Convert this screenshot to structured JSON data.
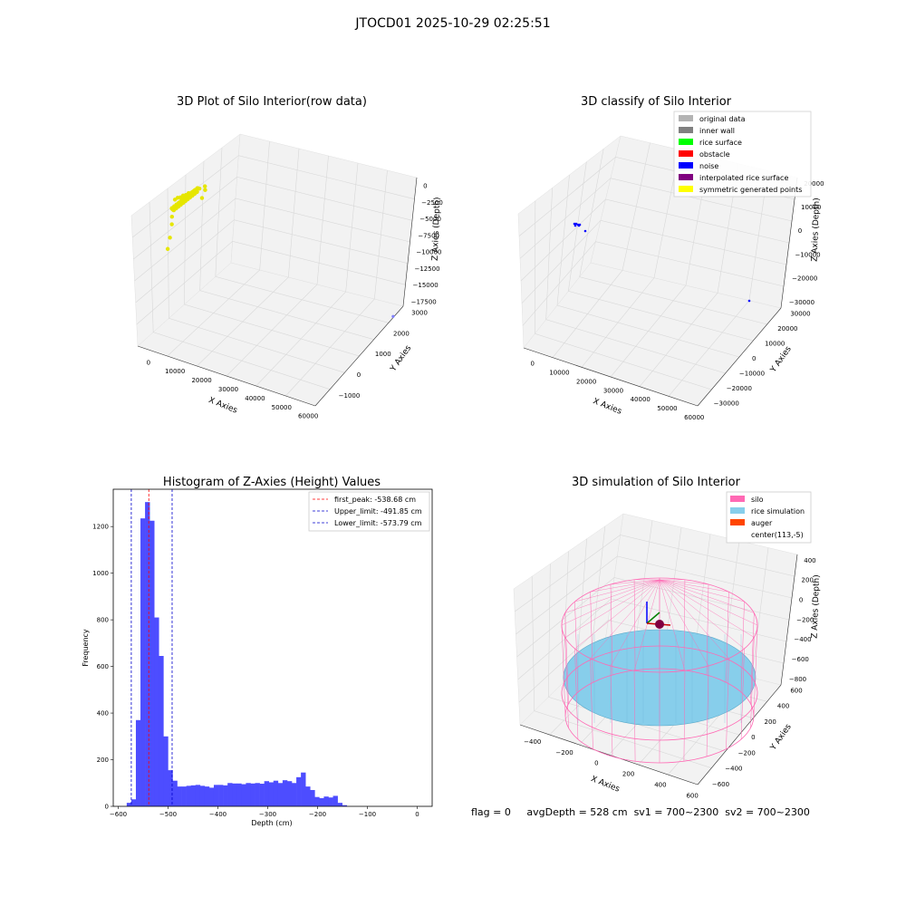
{
  "suptitle": "JTOCD01 2025-10-29 02:25:51",
  "footer": {
    "flag": "flag = 0",
    "avg": "avgDepth = 528 cm",
    "sv1": "sv1 = 700~2300",
    "sv2": "sv2 = 700~2300"
  },
  "colors": {
    "pane": "#f2f2f2",
    "grid": "#d8d8d8",
    "hist_bar": "#4d4dff",
    "first_peak_line": "#ff0000",
    "limit_line": "#0000cc",
    "silo": "#ff69b4",
    "rice": "#87ceeb",
    "auger": "#ff4500"
  },
  "chart_data": [
    {
      "type": "scatter",
      "projection": "3d",
      "title": "3D Plot of Silo Interior(row data)",
      "xlabel": "X Axies",
      "ylabel": "Y Axies",
      "zlabel": "Z Axies (Depth)",
      "x_ticks": [
        "0",
        "10000",
        "20000",
        "30000",
        "40000",
        "50000",
        "60000"
      ],
      "y_ticks": [
        "−1000",
        "0",
        "1000",
        "2000",
        "3000"
      ],
      "z_ticks": [
        "0",
        "−2500",
        "−5000",
        "−7500",
        "−10000",
        "−12500",
        "−15000",
        "−17500"
      ],
      "grid": true,
      "series": [
        {
          "color": "#e6e600",
          "points_xyz": [
            [
              1200,
              300,
              -500
            ],
            [
              1800,
              500,
              -600
            ],
            [
              2400,
              700,
              -700
            ],
            [
              3000,
              900,
              -800
            ],
            [
              3600,
              1100,
              -900
            ],
            [
              4200,
              1300,
              -1000
            ],
            [
              900,
              200,
              -550
            ],
            [
              1500,
              400,
              -650
            ],
            [
              2100,
              600,
              -750
            ],
            [
              2700,
              800,
              -850
            ],
            [
              200,
              100,
              -3000
            ],
            [
              400,
              50,
              -4000
            ],
            [
              -200,
              0,
              -6000
            ],
            [
              -500,
              -100,
              -7500
            ],
            [
              6000,
              900,
              -1500
            ],
            [
              5000,
              1200,
              -1200
            ]
          ]
        },
        {
          "color": "#8080ff",
          "points_xyz": [
            [
              64000,
              2800,
              -17000
            ]
          ]
        }
      ]
    },
    {
      "type": "scatter",
      "projection": "3d",
      "title": "3D classify of Silo Interior",
      "xlabel": "X Axies",
      "ylabel": "Y Axies",
      "zlabel": "Z Axies (Depth)",
      "x_ticks": [
        "0",
        "10000",
        "20000",
        "30000",
        "40000",
        "50000",
        "60000"
      ],
      "y_ticks": [
        "−30000",
        "−20000",
        "−10000",
        "0",
        "10000",
        "20000",
        "30000"
      ],
      "z_ticks": [
        "20000",
        "10000",
        "0",
        "−10000",
        "−20000",
        "−30000"
      ],
      "grid": true,
      "legend_position": "top-right",
      "legend": [
        {
          "label": "original data",
          "color": "#b3b3b3"
        },
        {
          "label": "inner wall",
          "color": "#808080"
        },
        {
          "label": "rice surface",
          "color": "#00ff00"
        },
        {
          "label": "obstacle",
          "color": "#ff0000"
        },
        {
          "label": "noise",
          "color": "#0000ff"
        },
        {
          "label": "interpolated rice surface",
          "color": "#800080"
        },
        {
          "label": "symmetric generated points",
          "color": "#ffff00"
        }
      ],
      "series": [
        {
          "color": "#0000ff",
          "points_xyz": [
            [
              0,
              0,
              0
            ],
            [
              500,
              300,
              -300
            ],
            [
              1000,
              600,
              -600
            ],
            [
              1500,
              200,
              -200
            ]
          ]
        },
        {
          "color": "#0000ff",
          "points_xyz": [
            [
              3000,
              1000,
              -2000
            ]
          ]
        },
        {
          "color": "#0000ff",
          "points_xyz": [
            [
              60000,
              25000,
              -30000
            ]
          ]
        }
      ]
    },
    {
      "type": "bar",
      "title": "Histogram of Z-Axies (Height) Values",
      "xlabel": "Depth (cm)",
      "ylabel": "Frequency",
      "xlim": [
        -610,
        30
      ],
      "ylim": [
        0,
        1360
      ],
      "x_ticks": [
        "−600",
        "−500",
        "−400",
        "−300",
        "−200",
        "−100",
        "0"
      ],
      "y_ticks": [
        "0",
        "200",
        "400",
        "600",
        "800",
        "1000",
        "1200"
      ],
      "bin_start": -583,
      "bin_width": 9.2,
      "values": [
        15,
        30,
        370,
        1235,
        1305,
        1225,
        810,
        645,
        300,
        155,
        110,
        85,
        85,
        88,
        90,
        92,
        88,
        85,
        80,
        92,
        92,
        90,
        100,
        98,
        98,
        95,
        100,
        98,
        100,
        97,
        108,
        103,
        110,
        100,
        112,
        108,
        100,
        125,
        145,
        85,
        70,
        40,
        35,
        42,
        38,
        45,
        15,
        5
      ],
      "vlines": [
        {
          "label": "first_peak: -538.68 cm",
          "x": -538.68,
          "color": "#ff0000"
        },
        {
          "label": "Upper_limit: -491.85 cm",
          "x": -491.85,
          "color": "#0000cc"
        },
        {
          "label": "Lower_limit: -573.79 cm",
          "x": -573.79,
          "color": "#0000cc"
        }
      ],
      "legend_position": "top-right"
    },
    {
      "type": "other",
      "projection": "3d",
      "title": "3D simulation of Silo Interior",
      "xlabel": "X Axies",
      "ylabel": "Y Axies",
      "zlabel": "Z Axies (Depth)",
      "x_ticks": [
        "−400",
        "−200",
        "0",
        "200",
        "400",
        "600"
      ],
      "y_ticks": [
        "−600",
        "−400",
        "−200",
        "0",
        "200",
        "400",
        "600"
      ],
      "z_ticks": [
        "400",
        "200",
        "0",
        "−200",
        "−400",
        "−600",
        "−800"
      ],
      "grid": true,
      "legend_position": "top-right",
      "legend": [
        {
          "label": "silo",
          "color": "#ff69b4"
        },
        {
          "label": "rice simulation",
          "color": "#87ceeb"
        },
        {
          "label": "auger",
          "color": "#ff4500"
        },
        {
          "label": "center(113,-5)",
          "color": ""
        }
      ]
    }
  ]
}
